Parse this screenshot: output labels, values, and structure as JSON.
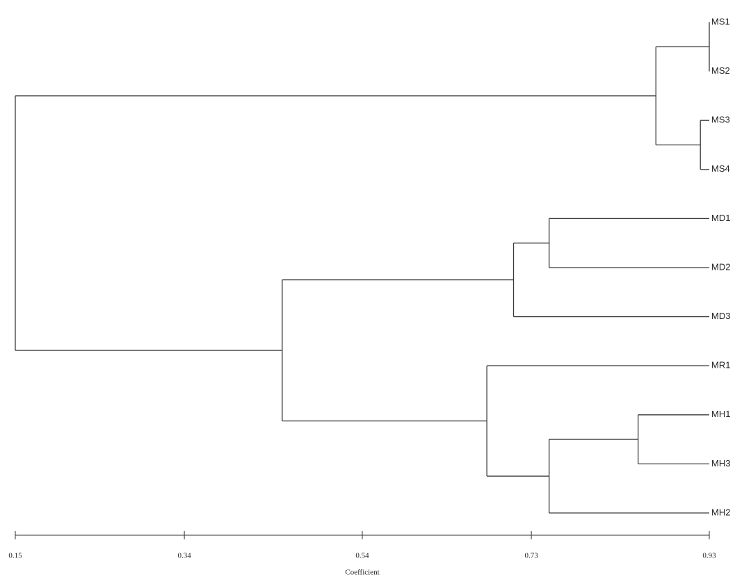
{
  "chart_data": {
    "type": "dendrogram",
    "x_label": "Coefficient",
    "leaves": [
      "MS1",
      "MS2",
      "MS3",
      "MS4",
      "MD1",
      "MD2",
      "MD3",
      "MR1",
      "MH1",
      "MH3",
      "MH2"
    ],
    "merges": [
      {
        "children": [
          0,
          1
        ],
        "height": 0.93
      },
      {
        "children": [
          2,
          3
        ],
        "height": 0.92
      },
      {
        "children": [
          11,
          12
        ],
        "height": 0.87
      },
      {
        "children": [
          4,
          5
        ],
        "height": 0.75
      },
      {
        "children": [
          14,
          6
        ],
        "height": 0.71
      },
      {
        "children": [
          8,
          9
        ],
        "height": 0.85
      },
      {
        "children": [
          16,
          10
        ],
        "height": 0.75
      },
      {
        "children": [
          7,
          17
        ],
        "height": 0.68
      },
      {
        "children": [
          15,
          18
        ],
        "height": 0.45
      },
      {
        "children": [
          13,
          19
        ],
        "height": 0.15
      }
    ],
    "xlim": [
      0.15,
      0.93
    ],
    "xticks": [
      0.15,
      0.34,
      0.54,
      0.73,
      0.93
    ],
    "color": "#3a3a3a"
  }
}
